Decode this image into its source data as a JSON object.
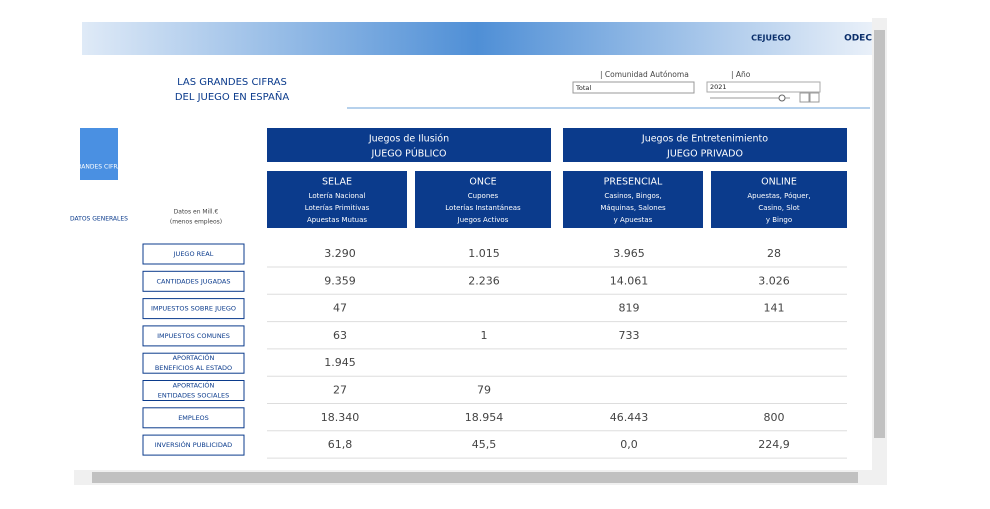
{
  "header": {
    "logo": "CEJUEGO",
    "logo2": "ODEC"
  },
  "title": [
    "LAS GRANDES CIFRAS",
    "DEL JUEGO EN ESPAÑA"
  ],
  "filters": {
    "region_label": "| Comunidad Autónoma",
    "region_value": "Total",
    "year_label": "| Año",
    "year_value": "2021"
  },
  "sidebar": [
    {
      "label": "GRANDES CIFRAS"
    },
    {
      "label": "DATOS GENERALES"
    }
  ],
  "units": [
    "Datos en Mill.€",
    "(menos empleos)"
  ],
  "groups": [
    {
      "title": [
        "Juegos de Ilusión",
        "JUEGO PÚBLICO"
      ]
    },
    {
      "title": [
        "Juegos de Entretenimiento",
        "JUEGO PRIVADO"
      ]
    }
  ],
  "columns": [
    {
      "name": "SELAE",
      "detail": [
        "Lotería Nacional",
        "Loterías Primitivas",
        "Apuestas Mutuas"
      ]
    },
    {
      "name": "ONCE",
      "detail": [
        "Cupones",
        "Loterías Instantáneas",
        "Juegos Activos"
      ]
    },
    {
      "name": "PRESENCIAL",
      "detail": [
        "Casinos, Bingos,",
        "Máquinas, Salones",
        "y Apuestas"
      ]
    },
    {
      "name": "ONLINE",
      "detail": [
        "Apuestas, Póquer,",
        "Casino, Slot",
        "y Bingo"
      ]
    }
  ],
  "rows": [
    {
      "label": [
        "JUEGO REAL"
      ],
      "values": [
        "3.290",
        "1.015",
        "3.965",
        "28"
      ]
    },
    {
      "label": [
        "CANTIDADES JUGADAS"
      ],
      "values": [
        "9.359",
        "2.236",
        "14.061",
        "3.026"
      ]
    },
    {
      "label": [
        "IMPUESTOS SOBRE JUEGO"
      ],
      "values": [
        "47",
        null,
        "819",
        "141"
      ]
    },
    {
      "label": [
        "IMPUESTOS COMUNES"
      ],
      "values": [
        "63",
        "1",
        "733",
        null
      ]
    },
    {
      "label": [
        "APORTACIÓN",
        "BENEFICIOS AL ESTADO"
      ],
      "values": [
        "1.945",
        null,
        null,
        null
      ]
    },
    {
      "label": [
        "APORTACIÓN",
        "ENTIDADES SOCIALES"
      ],
      "values": [
        "27",
        "79",
        null,
        null
      ]
    },
    {
      "label": [
        "EMPLEOS"
      ],
      "values": [
        "18.340",
        "18.954",
        "46.443",
        "800"
      ]
    },
    {
      "label": [
        "INVERSIÓN PUBLICIDAD"
      ],
      "values": [
        "61,8",
        "45,5",
        "0,0",
        "224,9"
      ]
    }
  ]
}
